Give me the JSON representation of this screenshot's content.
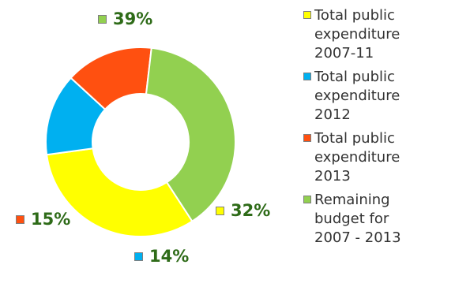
{
  "chart_data": {
    "type": "pie",
    "variant": "donut",
    "categories": [
      "Total public expenditure 2007-11",
      "Total public expenditure 2012",
      "Total public expenditure 2013",
      "Remaining budget for 2007 - 2013"
    ],
    "values": [
      32,
      14,
      15,
      39
    ],
    "value_labels": [
      "32%",
      "14%",
      "15%",
      "39%"
    ],
    "colors": [
      "#ffff00",
      "#00b0f0",
      "#ff5010",
      "#92d050"
    ],
    "title": "",
    "legend_position": "right"
  }
}
